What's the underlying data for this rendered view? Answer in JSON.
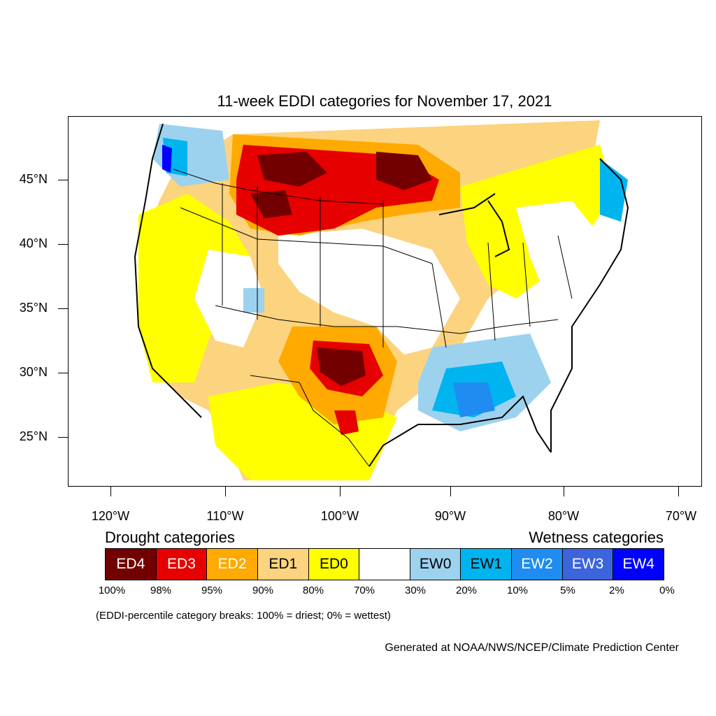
{
  "title": "11-week EDDI categories for November 17, 2021",
  "lat_labels": [
    "45°N",
    "40°N",
    "35°N",
    "30°N",
    "25°N"
  ],
  "lon_labels": [
    "120°W",
    "110°W",
    "100°W",
    "90°W",
    "80°W",
    "70°W"
  ],
  "legend": {
    "drought_heading": "Drought categories",
    "wetness_heading": "Wetness categories",
    "categories": [
      {
        "label": "ED4",
        "color": "#730000",
        "text_color": "#ffffff"
      },
      {
        "label": "ED3",
        "color": "#e60000",
        "text_color": "#ffffff"
      },
      {
        "label": "ED2",
        "color": "#ffaa00",
        "text_color": "#ffffff"
      },
      {
        "label": "ED1",
        "color": "#fcd37f",
        "text_color": "#000000"
      },
      {
        "label": "ED0",
        "color": "#ffff00",
        "text_color": "#000000"
      },
      {
        "label": "",
        "color": "#ffffff",
        "text_color": "#000000"
      },
      {
        "label": "EW0",
        "color": "#9dd2ef",
        "text_color": "#000000"
      },
      {
        "label": "EW1",
        "color": "#00b4f0",
        "text_color": "#000000"
      },
      {
        "label": "EW2",
        "color": "#1e8cf0",
        "text_color": "#ffffff"
      },
      {
        "label": "EW3",
        "color": "#3c64dc",
        "text_color": "#ffffff"
      },
      {
        "label": "EW4",
        "color": "#0000ff",
        "text_color": "#ffffff"
      }
    ],
    "percentiles": [
      "100%",
      "98%",
      "95%",
      "90%",
      "80%",
      "70%",
      "30%",
      "20%",
      "10%",
      "5%",
      "2%",
      "0%"
    ]
  },
  "note": "(EDDI-percentile category breaks: 100% = driest; 0% = wettest)",
  "credit": "Generated at NOAA/NWS/NCEP/Climate Prediction Center"
}
